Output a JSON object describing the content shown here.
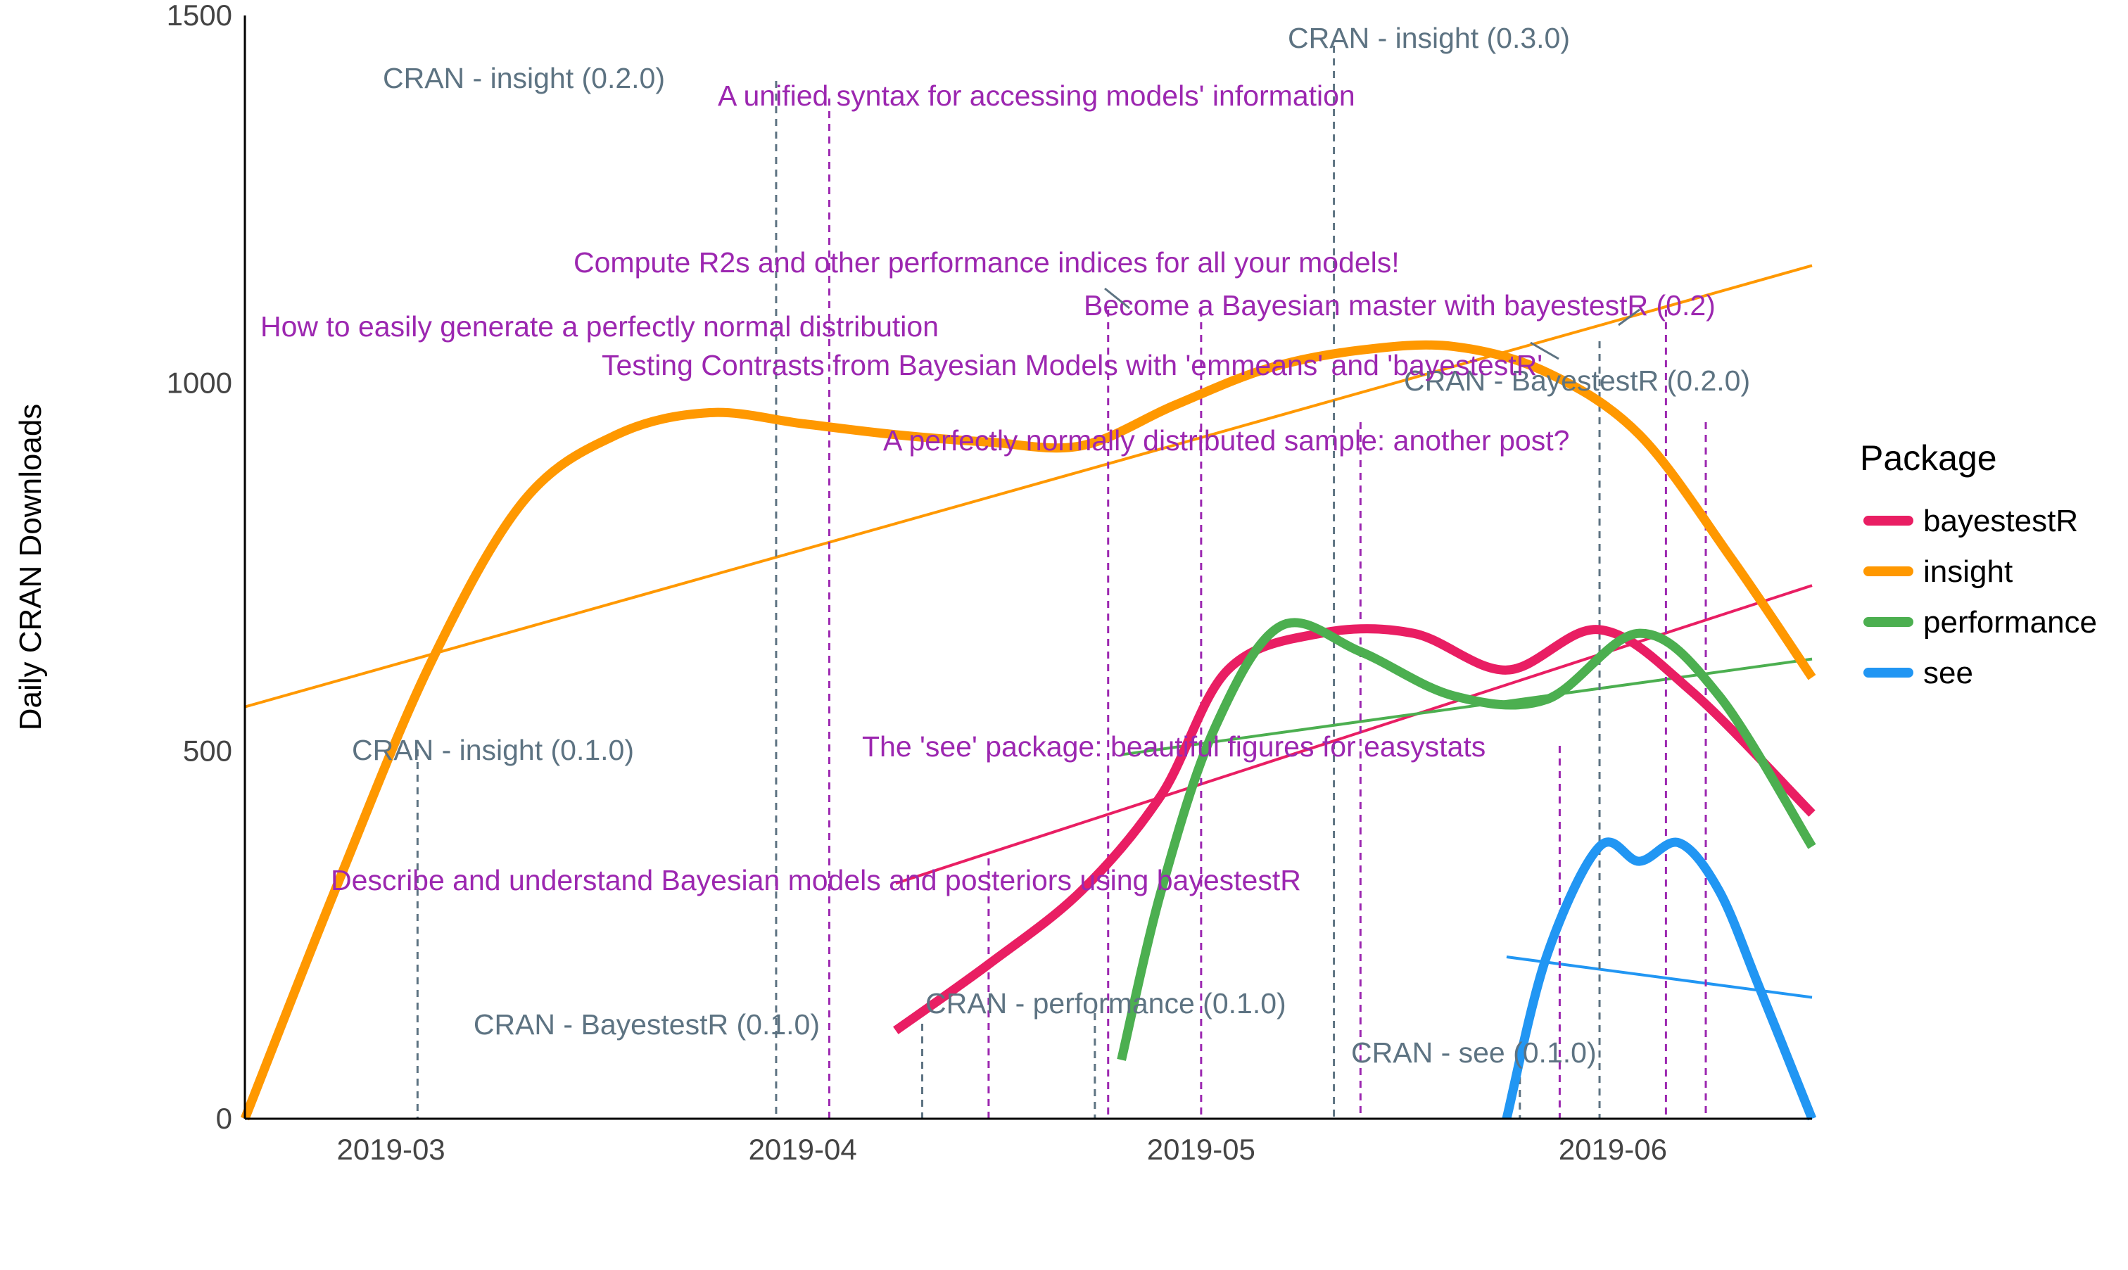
{
  "chart_data": {
    "type": "line",
    "xlabel": "",
    "ylabel": "Daily CRAN Downloads",
    "xlim": [
      "2019-02-18",
      "2019-06-16"
    ],
    "ylim": [
      0,
      1500
    ],
    "x_ticks": [
      "2019-03",
      "2019-04",
      "2019-05",
      "2019-06"
    ],
    "y_ticks": [
      0,
      500,
      1000,
      1500
    ],
    "legend_title": "Package",
    "legend_position": "right",
    "series": [
      {
        "name": "bayestestR",
        "color": "#e91e63",
        "x": [
          "2019-04-08",
          "2019-04-15",
          "2019-04-22",
          "2019-04-28",
          "2019-05-03",
          "2019-05-10",
          "2019-05-17",
          "2019-05-24",
          "2019-05-31",
          "2019-06-07",
          "2019-06-16"
        ],
        "y": [
          120,
          210,
          310,
          440,
          610,
          660,
          660,
          610,
          665,
          580,
          415
        ],
        "trend": {
          "x": [
            "2019-04-08",
            "2019-06-16"
          ],
          "y": [
            320,
            725
          ]
        }
      },
      {
        "name": "insight",
        "color": "#ff9800",
        "x": [
          "2019-02-18",
          "2019-02-25",
          "2019-03-04",
          "2019-03-11",
          "2019-03-18",
          "2019-03-25",
          "2019-04-01",
          "2019-04-08",
          "2019-04-15",
          "2019-04-22",
          "2019-04-29",
          "2019-05-06",
          "2019-05-13",
          "2019-05-20",
          "2019-05-27",
          "2019-06-03",
          "2019-06-10",
          "2019-06-16"
        ],
        "y": [
          0,
          320,
          620,
          840,
          930,
          960,
          945,
          930,
          920,
          915,
          970,
          1020,
          1045,
          1050,
          1015,
          930,
          760,
          600
        ],
        "trend": {
          "x": [
            "2019-02-18",
            "2019-06-16"
          ],
          "y": [
            560,
            1160
          ]
        }
      },
      {
        "name": "performance",
        "color": "#4caf50",
        "x": [
          "2019-04-25",
          "2019-04-28",
          "2019-05-02",
          "2019-05-07",
          "2019-05-13",
          "2019-05-20",
          "2019-05-27",
          "2019-06-03",
          "2019-06-09",
          "2019-06-16"
        ],
        "y": [
          80,
          310,
          530,
          670,
          635,
          575,
          570,
          660,
          575,
          370
        ],
        "trend": {
          "x": [
            "2019-04-25",
            "2019-06-16"
          ],
          "y": [
            495,
            625
          ]
        }
      },
      {
        "name": "see",
        "color": "#2196f3",
        "x": [
          "2019-05-24",
          "2019-05-27",
          "2019-05-31",
          "2019-06-03",
          "2019-06-06",
          "2019-06-09",
          "2019-06-12",
          "2019-06-16"
        ],
        "y": [
          0,
          220,
          370,
          350,
          375,
          310,
          180,
          0
        ],
        "trend": {
          "x": [
            "2019-05-24",
            "2019-06-16"
          ],
          "y": [
            220,
            165
          ]
        }
      }
    ],
    "release_annotations": [
      {
        "label": "CRAN - insight (0.1.0)",
        "date": "2019-03-03"
      },
      {
        "label": "CRAN - insight (0.2.0)",
        "date": "2019-03-30"
      },
      {
        "label": "CRAN - BayestestR (0.1.0)",
        "date": "2019-04-10"
      },
      {
        "label": "CRAN - performance (0.1.0)",
        "date": "2019-04-23"
      },
      {
        "label": "CRAN - insight (0.3.0)",
        "date": "2019-05-11"
      },
      {
        "label": "CRAN - see (0.1.0)",
        "date": "2019-05-25"
      },
      {
        "label": "CRAN - BayestestR (0.2.0)",
        "date": "2019-05-31"
      }
    ],
    "blog_annotations": [
      {
        "label": "A unified syntax for accessing models' information",
        "date": "2019-04-03"
      },
      {
        "label": "Describe and understand Bayesian models and posteriors using bayestestR",
        "date": "2019-04-15"
      },
      {
        "label": "How to easily generate a perfectly normal distribution",
        "date": "2019-04-24"
      },
      {
        "label": "Compute R2s and other performance indices for all your models!",
        "date": "2019-05-01"
      },
      {
        "label": "Testing Contrasts from Bayesian Models with 'emmeans' and 'bayestestR'",
        "date": "2019-05-13"
      },
      {
        "label": "The 'see' package: beautiful figures for easystats",
        "date": "2019-05-28"
      },
      {
        "label": "Become a Bayesian master with bayestestR (0.2)",
        "date": "2019-06-05"
      },
      {
        "label": "A perfectly normally distributed sample: another post?",
        "date": "2019-06-08"
      }
    ]
  }
}
